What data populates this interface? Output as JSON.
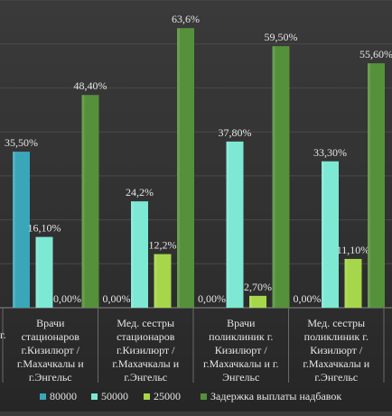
{
  "chart_data": {
    "type": "bar",
    "title": "",
    "xlabel": "",
    "ylabel": "",
    "ylim": [
      0,
      70
    ],
    "grid": true,
    "legend": "bottom",
    "truncated_left_label": "г.",
    "categories": [
      [
        "Врачи",
        "стационаров",
        "г.Кизилюрт /",
        "г.Махачкалы и",
        "г.Энгельс"
      ],
      [
        "Мед. сестры",
        "стационаров",
        "г.Кизилюрт /",
        "г.Махачкалы и",
        "г.Энгельс"
      ],
      [
        "Врачи",
        "поликлиник г.",
        "Кизилюрт /",
        "г.Махачкалы и г.",
        "Энгельс"
      ],
      [
        "Мед. сестры",
        "поликлиник г.",
        "Кизилюрт /",
        "г.Махачкалы и",
        "г.Энгельс"
      ]
    ],
    "series": [
      {
        "name": "80000",
        "color": "#3aa6b9",
        "values": [
          35.5,
          0,
          0,
          0
        ],
        "labels": [
          "35,50%",
          "0,00%",
          "0,00%",
          "0,00%"
        ]
      },
      {
        "name": "50000",
        "color": "#7de8d4",
        "values": [
          16.1,
          24.2,
          37.8,
          33.3
        ],
        "labels": [
          "16,10%",
          "24,2%",
          "37,80%",
          "33,30%"
        ]
      },
      {
        "name": "25000",
        "color": "#a6d64a",
        "values": [
          0,
          12.2,
          2.7,
          11.1
        ],
        "labels": [
          "0,00%",
          "12,2%",
          "2,70%",
          "11,10%"
        ]
      },
      {
        "name": "Задержка выплаты надбавок",
        "color": "#55913a",
        "values": [
          48.4,
          63.6,
          59.5,
          55.6
        ],
        "labels": [
          "48,40%",
          "63,6%",
          "59,50%",
          "55,60%"
        ]
      }
    ]
  }
}
